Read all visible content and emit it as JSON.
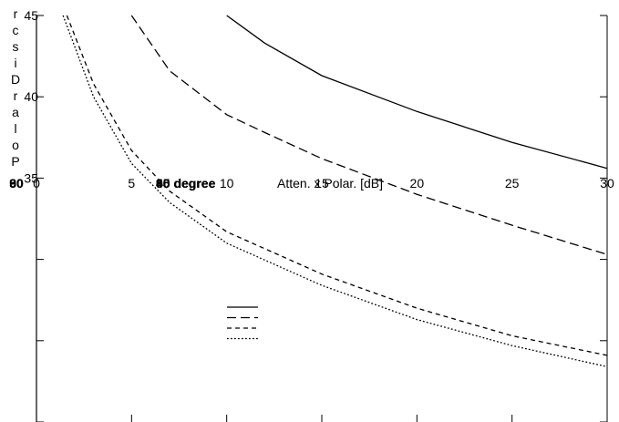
{
  "chart_data": {
    "type": "line",
    "xlabel": "Atten. x Polar. [dB]",
    "ylabel": "Discr.",
    "ylabel_chars": [
      "r",
      "c",
      "s",
      "i",
      "D",
      "r",
      "a",
      "l",
      "o",
      "P"
    ],
    "x_ticks": [
      "0",
      "5",
      "10",
      "15",
      "20",
      "25",
      "30"
    ],
    "x_origin_extra_labels": [
      "30",
      "60",
      "90"
    ],
    "y_ticks": [
      "35",
      "40",
      "45"
    ],
    "xlim": [
      0,
      30
    ],
    "ylim": [
      20,
      45
    ],
    "grid": false,
    "legend_position": "center-left",
    "legend_labels": [
      "30 degree",
      "45 degree",
      "60 degree",
      "90 degree"
    ],
    "series": [
      {
        "dash": "solid",
        "x": [
          10,
          12,
          15,
          20,
          25,
          30
        ],
        "y": [
          45.0,
          43.3,
          41.3,
          39.1,
          37.2,
          35.6
        ]
      },
      {
        "dash": "long-dash",
        "x": [
          5,
          7,
          10,
          12,
          15,
          20,
          25,
          30
        ],
        "y": [
          45.0,
          41.6,
          38.9,
          37.8,
          36.2,
          34.0,
          32.1,
          30.3
        ]
      },
      {
        "dash": "short-dash",
        "x": [
          1.6,
          3,
          5,
          7,
          10,
          15,
          20,
          25,
          30
        ],
        "y": [
          45.0,
          40.8,
          36.7,
          34.2,
          31.7,
          29.1,
          27.0,
          25.3,
          24.1
        ]
      },
      {
        "dash": "dotted",
        "x": [
          1.4,
          3,
          5,
          7,
          10,
          15,
          20,
          25,
          30
        ],
        "y": [
          45.0,
          40.0,
          35.9,
          33.5,
          31.0,
          28.4,
          26.3,
          24.7,
          23.4
        ]
      }
    ]
  }
}
